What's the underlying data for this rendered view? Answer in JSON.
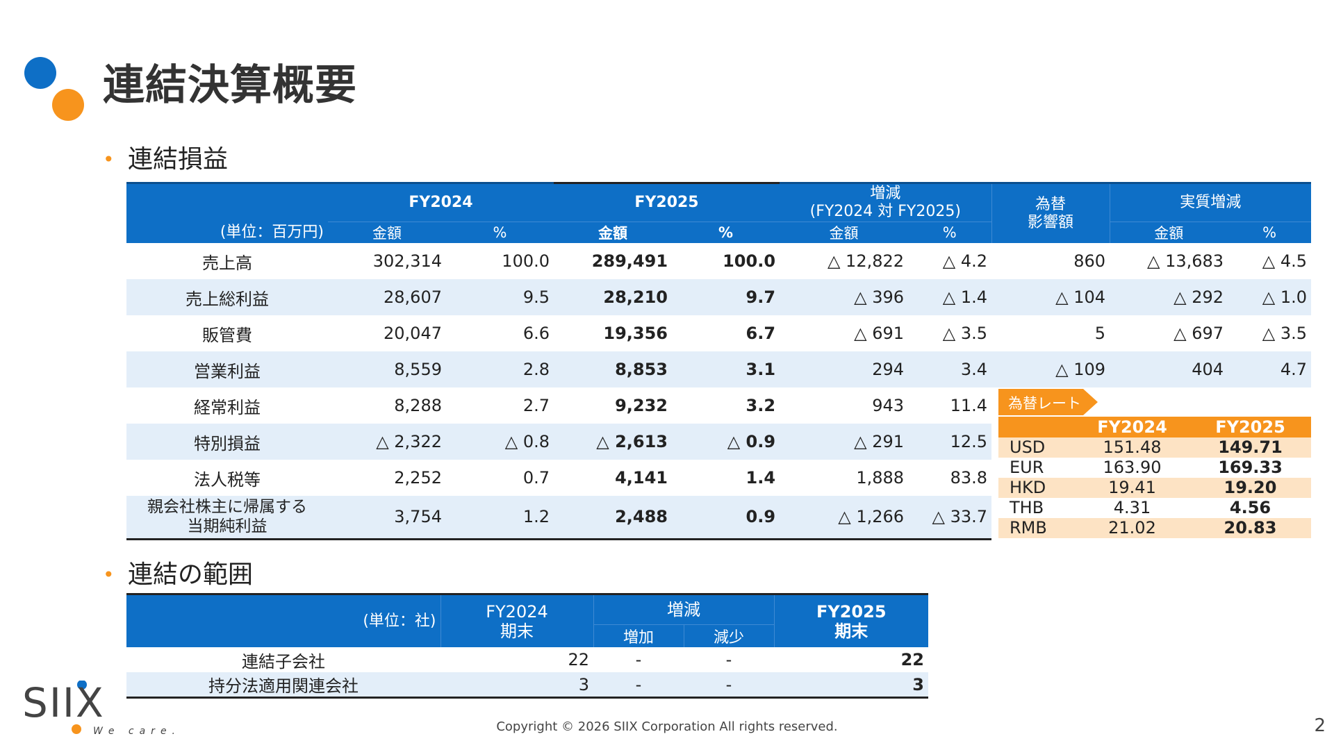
{
  "header": {
    "title": "連結決算概要"
  },
  "sections": {
    "pl": "連結損益",
    "scope": "連結の範囲"
  },
  "pl": {
    "unit": "(単位：百万円)",
    "col_groups": [
      "FY2024",
      "FY2025",
      "増減",
      "(FY2024 対 FY2025)",
      "為替",
      "影響額",
      "実質増減"
    ],
    "sub_amount": "金額",
    "sub_pct": "%",
    "rows": [
      {
        "label": "売上高",
        "fy24": "302,314",
        "fy24p": "100.0",
        "fy25": "289,491",
        "fy25p": "100.0",
        "chg": "△ 12,822",
        "chgp": "△ 4.2",
        "fx": "860",
        "real": "△ 13,683",
        "realp": "△ 4.5"
      },
      {
        "label": "売上総利益",
        "fy24": "28,607",
        "fy24p": "9.5",
        "fy25": "28,210",
        "fy25p": "9.7",
        "chg": "△ 396",
        "chgp": "△ 1.4",
        "fx": "△ 104",
        "real": "△ 292",
        "realp": "△ 1.0"
      },
      {
        "label": "販管費",
        "fy24": "20,047",
        "fy24p": "6.6",
        "fy25": "19,356",
        "fy25p": "6.7",
        "chg": "△ 691",
        "chgp": "△ 3.5",
        "fx": "5",
        "real": "△ 697",
        "realp": "△ 3.5"
      },
      {
        "label": "営業利益",
        "fy24": "8,559",
        "fy24p": "2.8",
        "fy25": "8,853",
        "fy25p": "3.1",
        "chg": "294",
        "chgp": "3.4",
        "fx": "△ 109",
        "real": "404",
        "realp": "4.7"
      },
      {
        "label": "経常利益",
        "fy24": "8,288",
        "fy24p": "2.7",
        "fy25": "9,232",
        "fy25p": "3.2",
        "chg": "943",
        "chgp": "11.4"
      },
      {
        "label": "特別損益",
        "fy24": "△ 2,322",
        "fy24p": "△ 0.8",
        "fy25": "△ 2,613",
        "fy25p": "△ 0.9",
        "chg": "△ 291",
        "chgp": "12.5"
      },
      {
        "label": "法人税等",
        "fy24": "2,252",
        "fy24p": "0.7",
        "fy25": "4,141",
        "fy25p": "1.4",
        "chg": "1,888",
        "chgp": "83.8"
      },
      {
        "label": "親会社株主に帰属する",
        "label2": "当期純利益",
        "fy24": "3,754",
        "fy24p": "1.2",
        "fy25": "2,488",
        "fy25p": "0.9",
        "chg": "△ 1,266",
        "chgp": "△ 33.7"
      }
    ]
  },
  "fx_rates": {
    "tag": "為替レート",
    "headers": [
      "FY2024",
      "FY2025"
    ],
    "rows": [
      {
        "cur": "USD",
        "fy24": "151.48",
        "fy25": "149.71"
      },
      {
        "cur": "EUR",
        "fy24": "163.90",
        "fy25": "169.33"
      },
      {
        "cur": "HKD",
        "fy24": "19.41",
        "fy25": "19.20"
      },
      {
        "cur": "THB",
        "fy24": "4.31",
        "fy25": "4.56"
      },
      {
        "cur": "RMB",
        "fy24": "21.02",
        "fy25": "20.83"
      }
    ]
  },
  "scope": {
    "unit": "(単位：社)",
    "h_fy24": "FY2024",
    "h_fy24b": "期末",
    "h_chg": "増減",
    "h_inc": "増加",
    "h_dec": "減少",
    "h_fy25": "FY2025",
    "h_fy25b": "期末",
    "rows": [
      {
        "label": "連結子会社",
        "fy24": "22",
        "inc": "-",
        "dec": "-",
        "fy25": "22"
      },
      {
        "label": "持分法適用関連会社",
        "fy24": "3",
        "inc": "-",
        "dec": "-",
        "fy25": "3"
      }
    ]
  },
  "footer": {
    "brand": "SIIX",
    "tagline": "We care.",
    "copyright": "Copyright © 2026 SIIX Corporation All rights reserved.",
    "page": "2"
  },
  "colors": {
    "blue": "#0e6fc6",
    "orange": "#f7941d",
    "row_shade": "#e3eef9",
    "fx_shade": "#fde3c4"
  }
}
